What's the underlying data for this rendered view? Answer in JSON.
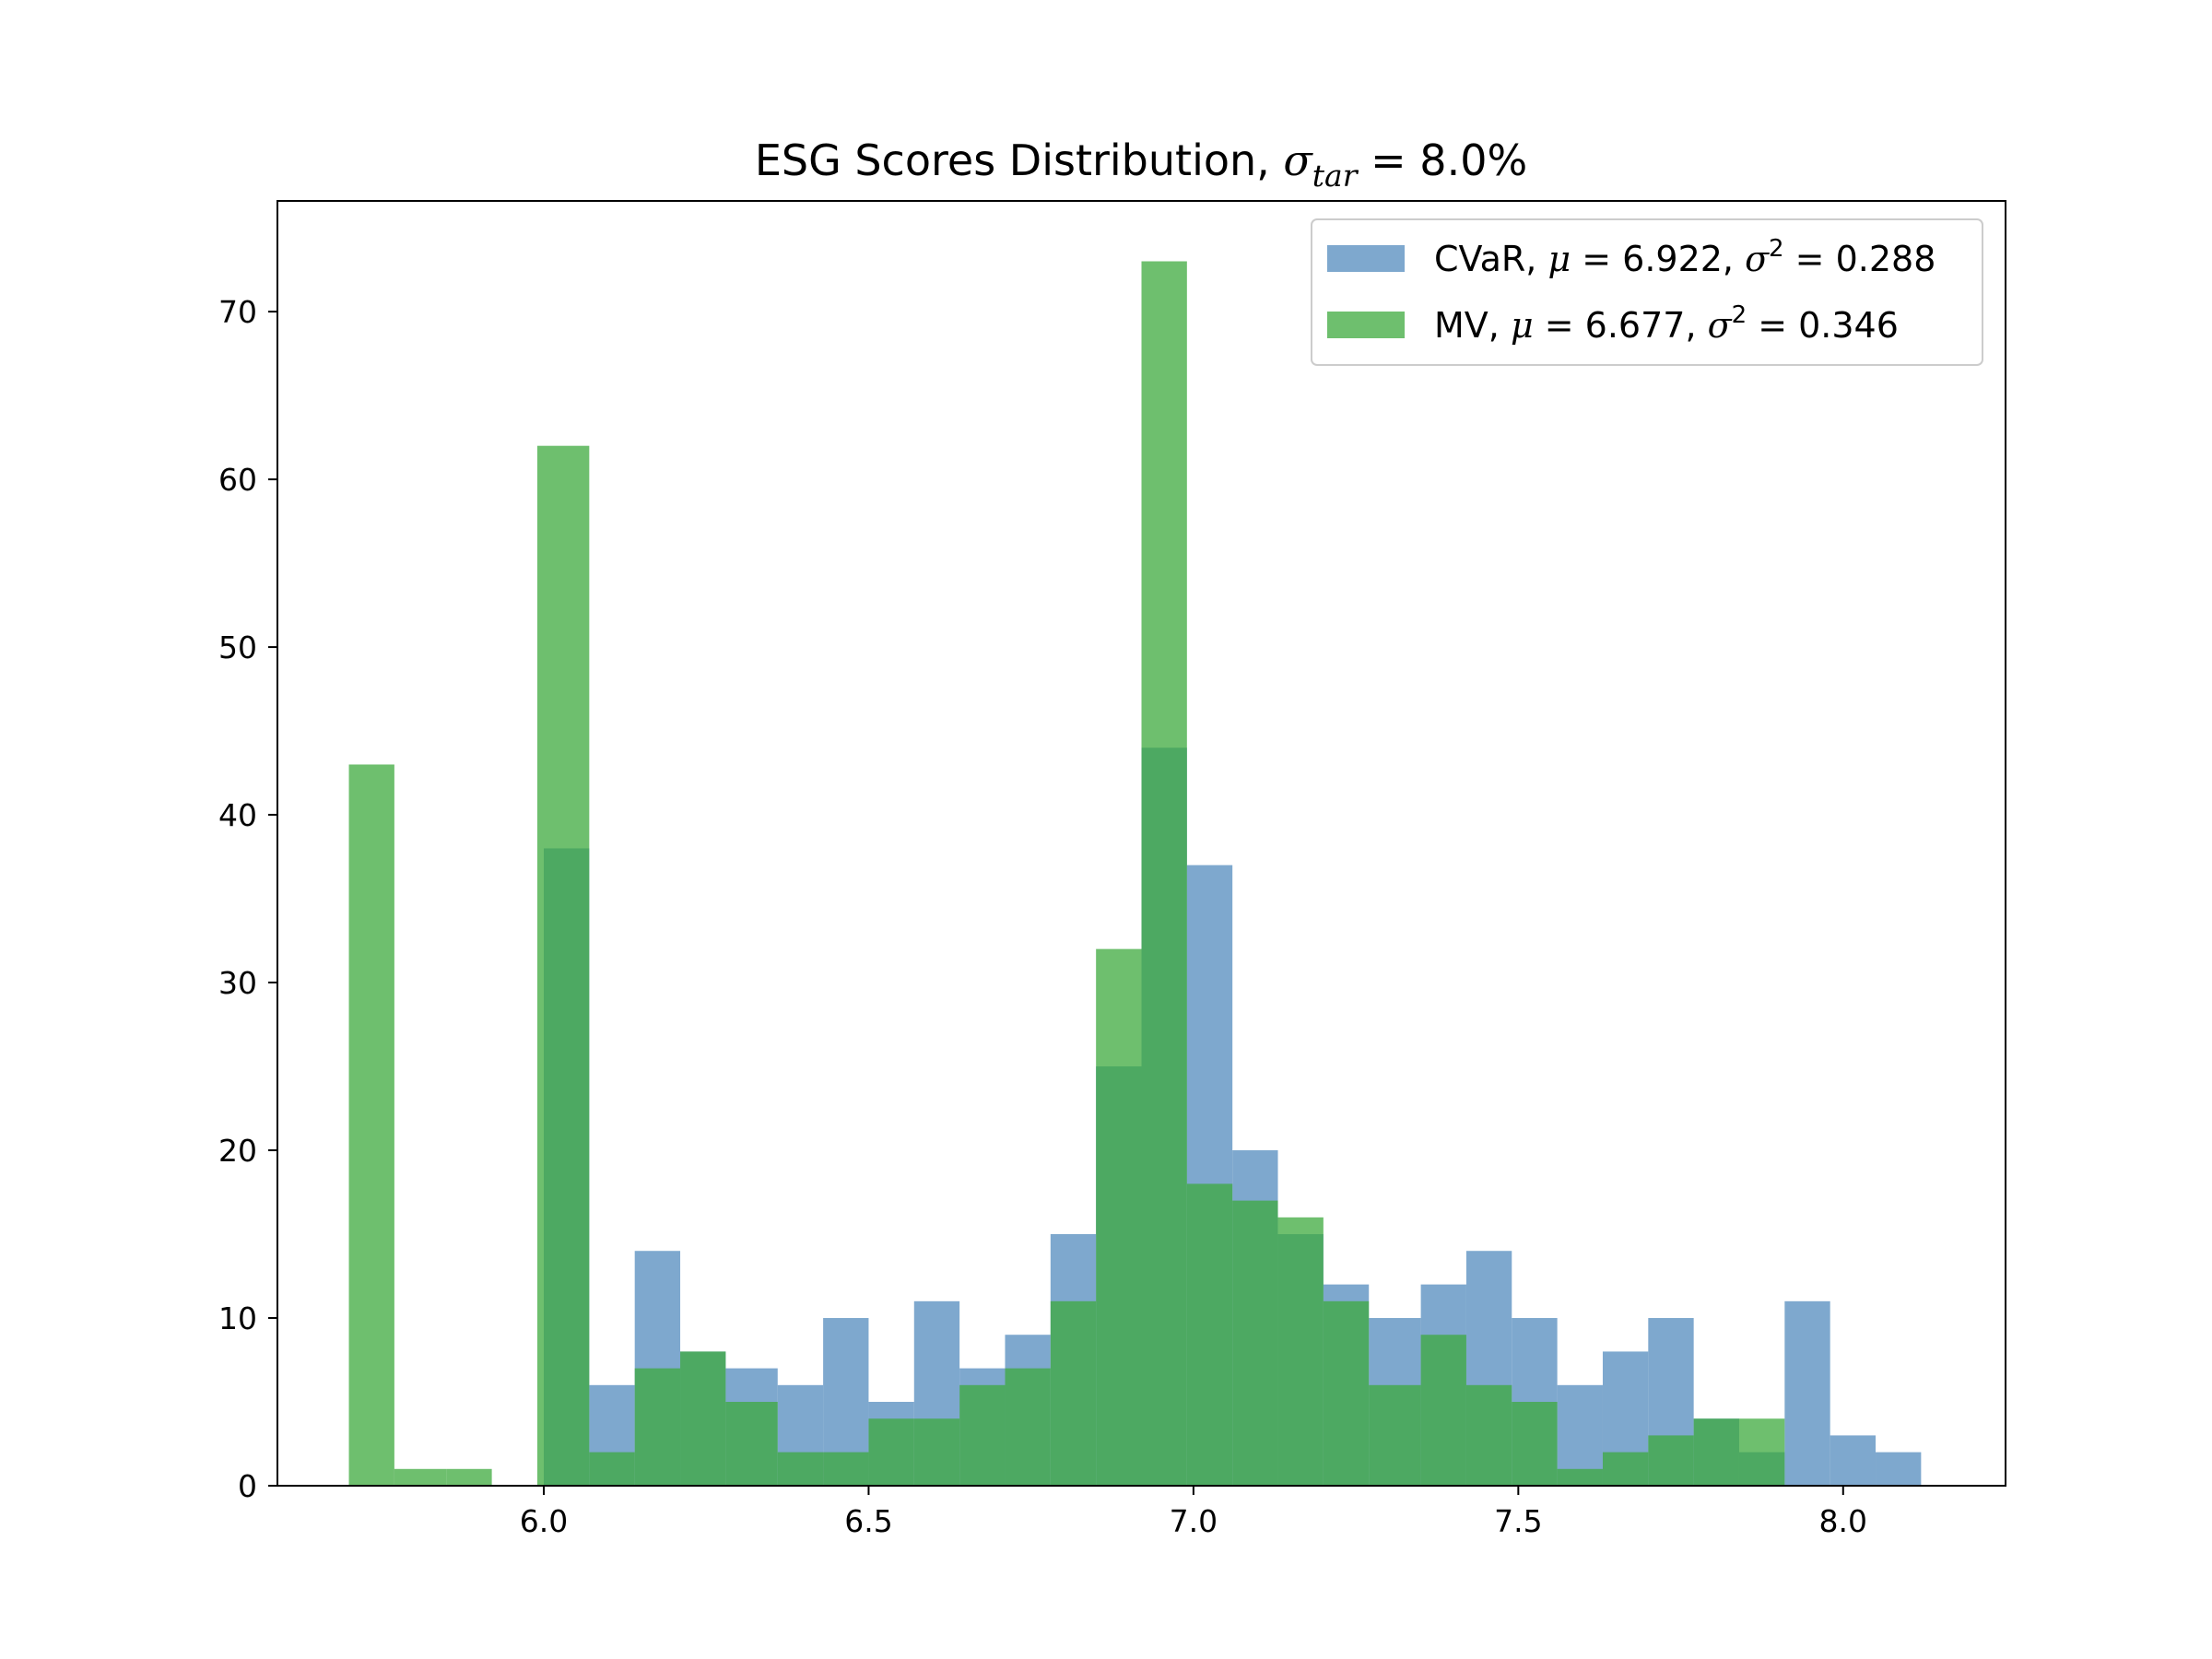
{
  "chart_data": {
    "type": "bar",
    "title_main": "ESG Scores Distribution, ",
    "title_symbol": "σ",
    "title_subscript": "tar",
    "title_tail": " = 8.0%",
    "xlabel": "",
    "ylabel": "",
    "xlim": [
      5.59,
      8.25
    ],
    "ylim": [
      0,
      76.6
    ],
    "x_ticks": [
      6.0,
      6.5,
      7.0,
      7.5,
      8.0
    ],
    "x_tick_labels": [
      "6.0",
      "6.5",
      "7.0",
      "7.5",
      "8.0"
    ],
    "y_ticks": [
      0,
      10,
      20,
      30,
      40,
      50,
      60,
      70
    ],
    "y_tick_labels": [
      "0",
      "10",
      "20",
      "30",
      "40",
      "50",
      "60",
      "70"
    ],
    "grid": false,
    "legend_position": "top-right",
    "series": [
      {
        "key": "cvar",
        "color": "#5a8fc0",
        "opacity": 0.78,
        "legend": {
          "prefix": "CVaR, ",
          "mu_sym": "μ",
          "eq1": " = 6.922, ",
          "sigma_sym": "σ",
          "sup": "2",
          "eq2": " = 0.288"
        },
        "bins": [
          {
            "x0": 6.0,
            "x1": 6.07,
            "count": 38
          },
          {
            "x0": 6.07,
            "x1": 6.14,
            "count": 6
          },
          {
            "x0": 6.14,
            "x1": 6.21,
            "count": 14
          },
          {
            "x0": 6.21,
            "x1": 6.28,
            "count": 8
          },
          {
            "x0": 6.28,
            "x1": 6.36,
            "count": 7
          },
          {
            "x0": 6.36,
            "x1": 6.43,
            "count": 6
          },
          {
            "x0": 6.43,
            "x1": 6.5,
            "count": 10
          },
          {
            "x0": 6.5,
            "x1": 6.57,
            "count": 5
          },
          {
            "x0": 6.57,
            "x1": 6.64,
            "count": 11
          },
          {
            "x0": 6.64,
            "x1": 6.71,
            "count": 7
          },
          {
            "x0": 6.71,
            "x1": 6.78,
            "count": 9
          },
          {
            "x0": 6.78,
            "x1": 6.85,
            "count": 15
          },
          {
            "x0": 6.85,
            "x1": 6.92,
            "count": 25
          },
          {
            "x0": 6.92,
            "x1": 6.99,
            "count": 44
          },
          {
            "x0": 6.99,
            "x1": 7.06,
            "count": 37
          },
          {
            "x0": 7.06,
            "x1": 7.13,
            "count": 20
          },
          {
            "x0": 7.13,
            "x1": 7.2,
            "count": 15
          },
          {
            "x0": 7.2,
            "x1": 7.27,
            "count": 12
          },
          {
            "x0": 7.27,
            "x1": 7.35,
            "count": 10
          },
          {
            "x0": 7.35,
            "x1": 7.42,
            "count": 12
          },
          {
            "x0": 7.42,
            "x1": 7.49,
            "count": 14
          },
          {
            "x0": 7.49,
            "x1": 7.56,
            "count": 10
          },
          {
            "x0": 7.56,
            "x1": 7.63,
            "count": 6
          },
          {
            "x0": 7.63,
            "x1": 7.7,
            "count": 8
          },
          {
            "x0": 7.7,
            "x1": 7.77,
            "count": 10
          },
          {
            "x0": 7.77,
            "x1": 7.84,
            "count": 4
          },
          {
            "x0": 7.84,
            "x1": 7.91,
            "count": 2
          },
          {
            "x0": 7.91,
            "x1": 7.98,
            "count": 11
          },
          {
            "x0": 7.98,
            "x1": 8.05,
            "count": 3
          },
          {
            "x0": 8.05,
            "x1": 8.12,
            "count": 2
          }
        ]
      },
      {
        "key": "mv",
        "color": "#3eaa3e",
        "opacity": 0.75,
        "legend": {
          "prefix": "MV, ",
          "mu_sym": "μ",
          "eq1": " = 6.677, ",
          "sigma_sym": "σ",
          "sup": "2",
          "eq2": " = 0.346"
        },
        "bins": [
          {
            "x0": 5.7,
            "x1": 5.77,
            "count": 43
          },
          {
            "x0": 5.77,
            "x1": 5.85,
            "count": 1
          },
          {
            "x0": 5.85,
            "x1": 5.92,
            "count": 1
          },
          {
            "x0": 5.92,
            "x1": 5.99,
            "count": 0
          },
          {
            "x0": 5.99,
            "x1": 6.07,
            "count": 62
          },
          {
            "x0": 6.07,
            "x1": 6.14,
            "count": 2
          },
          {
            "x0": 6.14,
            "x1": 6.21,
            "count": 7
          },
          {
            "x0": 6.21,
            "x1": 6.28,
            "count": 8
          },
          {
            "x0": 6.28,
            "x1": 6.36,
            "count": 5
          },
          {
            "x0": 6.36,
            "x1": 6.43,
            "count": 2
          },
          {
            "x0": 6.43,
            "x1": 6.5,
            "count": 2
          },
          {
            "x0": 6.5,
            "x1": 6.57,
            "count": 4
          },
          {
            "x0": 6.57,
            "x1": 6.64,
            "count": 4
          },
          {
            "x0": 6.64,
            "x1": 6.71,
            "count": 6
          },
          {
            "x0": 6.71,
            "x1": 6.78,
            "count": 7
          },
          {
            "x0": 6.78,
            "x1": 6.85,
            "count": 11
          },
          {
            "x0": 6.85,
            "x1": 6.92,
            "count": 32
          },
          {
            "x0": 6.92,
            "x1": 6.99,
            "count": 73
          },
          {
            "x0": 6.99,
            "x1": 7.06,
            "count": 18
          },
          {
            "x0": 7.06,
            "x1": 7.13,
            "count": 17
          },
          {
            "x0": 7.13,
            "x1": 7.2,
            "count": 16
          },
          {
            "x0": 7.2,
            "x1": 7.27,
            "count": 11
          },
          {
            "x0": 7.27,
            "x1": 7.35,
            "count": 6
          },
          {
            "x0": 7.35,
            "x1": 7.42,
            "count": 9
          },
          {
            "x0": 7.42,
            "x1": 7.49,
            "count": 6
          },
          {
            "x0": 7.49,
            "x1": 7.56,
            "count": 5
          },
          {
            "x0": 7.56,
            "x1": 7.63,
            "count": 1
          },
          {
            "x0": 7.63,
            "x1": 7.7,
            "count": 2
          },
          {
            "x0": 7.7,
            "x1": 7.77,
            "count": 3
          },
          {
            "x0": 7.77,
            "x1": 7.84,
            "count": 4
          },
          {
            "x0": 7.84,
            "x1": 7.91,
            "count": 4
          }
        ]
      }
    ]
  }
}
